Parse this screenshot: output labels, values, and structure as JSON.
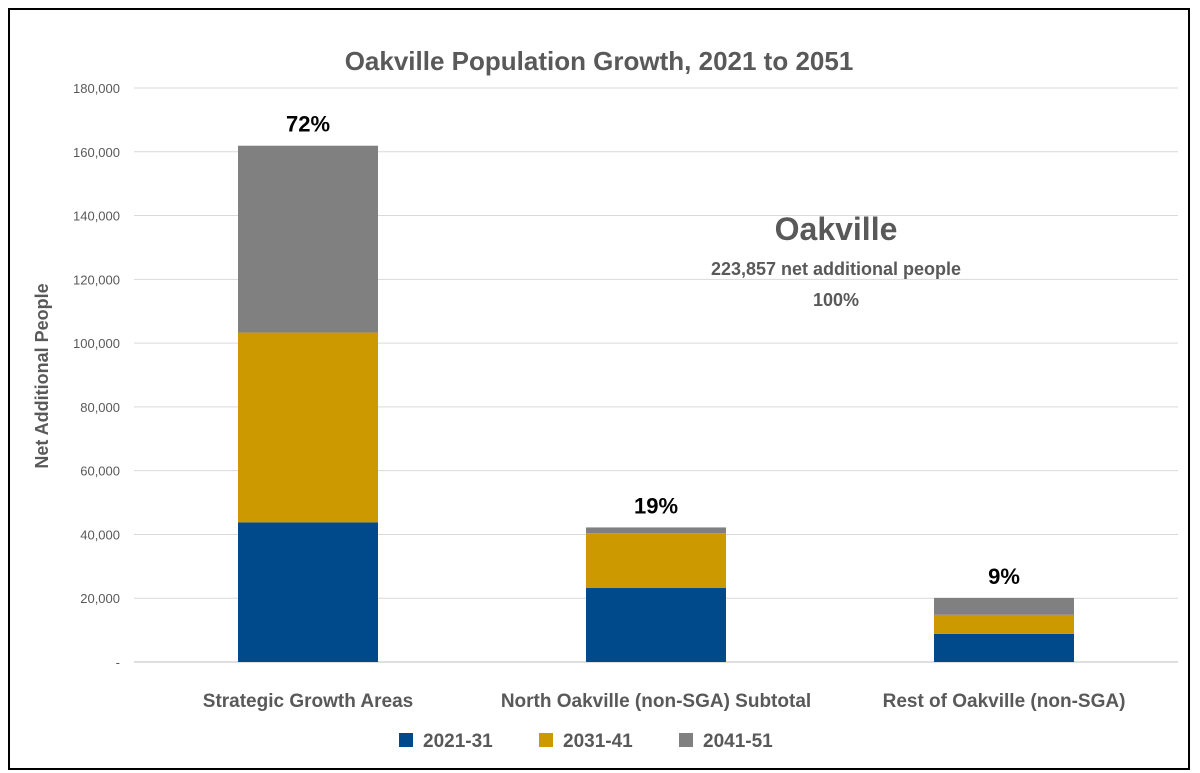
{
  "chart_data": {
    "type": "bar",
    "stacked": true,
    "title": "Oakville Population Growth, 2021 to 2051",
    "ylabel": "Net Additional People",
    "xlabel": "",
    "ylim": [
      0,
      180000
    ],
    "yticks": [
      {
        "value": 0,
        "label": "-"
      },
      {
        "value": 20000,
        "label": "20,000"
      },
      {
        "value": 40000,
        "label": "40,000"
      },
      {
        "value": 60000,
        "label": "60,000"
      },
      {
        "value": 80000,
        "label": "80,000"
      },
      {
        "value": 100000,
        "label": "100,000"
      },
      {
        "value": 120000,
        "label": "120,000"
      },
      {
        "value": 140000,
        "label": "140,000"
      },
      {
        "value": 160000,
        "label": "160,000"
      },
      {
        "value": 180000,
        "label": "180,000"
      }
    ],
    "categories": [
      "Strategic Growth Areas",
      "North Oakville (non-SGA) Subtotal",
      "Rest of Oakville (non-SGA)"
    ],
    "series": [
      {
        "name": "2021-31",
        "color": "#004a8c",
        "values": [
          43800,
          23200,
          8800
        ]
      },
      {
        "name": "2031-41",
        "color": "#cc9900",
        "values": [
          59500,
          17200,
          6000
        ]
      },
      {
        "name": "2041-51",
        "color": "#808080",
        "values": [
          58600,
          1800,
          5300
        ]
      }
    ],
    "data_labels": [
      "72%",
      "19%",
      "9%"
    ],
    "grid": true,
    "legend": "bottom",
    "annotation": {
      "title": "Oakville",
      "line1": "223,857 net additional people",
      "line2": "100%"
    }
  }
}
